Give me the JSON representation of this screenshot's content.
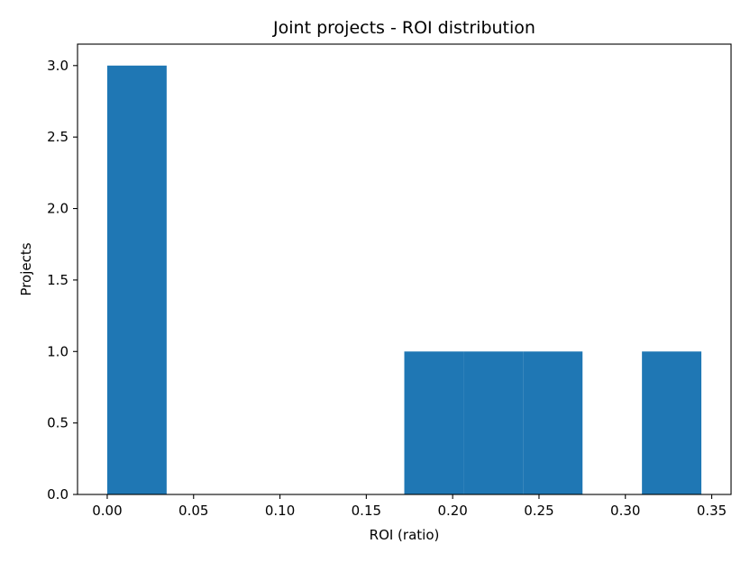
{
  "chart_data": {
    "type": "bar",
    "title": "Joint projects - ROI distribution",
    "xlabel": "ROI (ratio)",
    "ylabel": "Projects",
    "xlim": [
      -0.0172,
      0.3612
    ],
    "ylim": [
      0,
      3.15
    ],
    "xticks": [
      0.0,
      0.05,
      0.1,
      0.15,
      0.2,
      0.25,
      0.3,
      0.35
    ],
    "xtick_labels": [
      "0.00",
      "0.05",
      "0.10",
      "0.15",
      "0.20",
      "0.25",
      "0.30",
      "0.35"
    ],
    "yticks": [
      0.0,
      0.5,
      1.0,
      1.5,
      2.0,
      2.5,
      3.0
    ],
    "ytick_labels": [
      "0.0",
      "0.5",
      "1.0",
      "1.5",
      "2.0",
      "2.5",
      "3.0"
    ],
    "bin_edges": [
      0.0,
      0.0344,
      0.0688,
      0.1032,
      0.1376,
      0.172,
      0.2064,
      0.2408,
      0.2752,
      0.3096,
      0.344
    ],
    "counts": [
      3,
      0,
      0,
      0,
      0,
      1,
      1,
      1,
      0,
      1
    ],
    "bar_color": "#1f77b4",
    "grid": false,
    "legend": false
  }
}
